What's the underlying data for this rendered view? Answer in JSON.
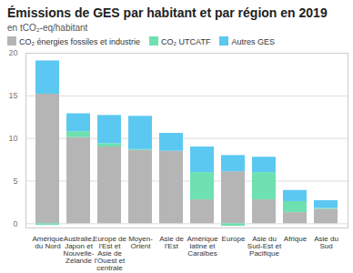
{
  "chart_data": {
    "type": "bar",
    "stacked": true,
    "grid": true,
    "title": "Émissions de GES par habitant et par région en 2019",
    "subtitle": "en tCO₂-eq/habitant",
    "categories": [
      "Amérique du Nord",
      "Australie, Japon et Nouvelle-Zélande",
      "Europe de l'Est et Asie de l'Ouest et centrale",
      "Moyen-Orient",
      "Asie de l'Est",
      "Amérique latine et Caraïbes",
      "Europe",
      "Asie du Sud-Est et Pacifique",
      "Afrique",
      "Asie du Sud"
    ],
    "series": [
      {
        "name": "CO₂ énergies fossiles et industrie",
        "color": "#b5b5b5",
        "values": [
          15.2,
          10.1,
          9.0,
          8.6,
          8.5,
          2.8,
          6.1,
          2.8,
          1.3,
          1.7
        ]
      },
      {
        "name": "CO₂ UTCATF",
        "color": "#6fe0b0",
        "values": [
          -0.2,
          0.7,
          0.4,
          0.1,
          0,
          3.2,
          -0.3,
          3.2,
          1.3,
          0.1
        ]
      },
      {
        "name": "Autres GES",
        "color": "#5bc8f2",
        "values": [
          3.9,
          2.1,
          3.3,
          3.9,
          2.1,
          3.0,
          1.9,
          1.8,
          1.3,
          0.9
        ]
      }
    ],
    "ylim": [
      -0.5,
      20
    ],
    "yticks": [
      0,
      5,
      10,
      15,
      20
    ]
  }
}
